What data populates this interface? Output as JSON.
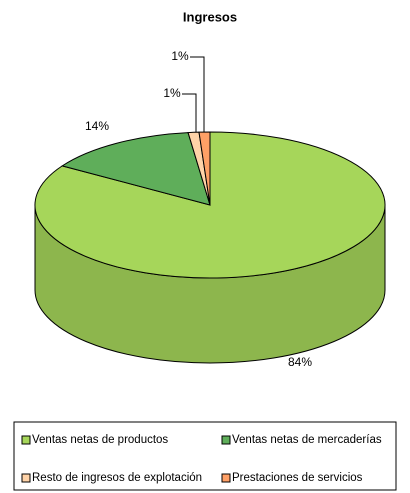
{
  "chart_data": {
    "type": "pie",
    "title": "Ingresos",
    "categories": [
      "Ventas netas de productos",
      "Ventas netas de mercaderías",
      "Resto de ingresos de explotación",
      "Prestaciones de servicios"
    ],
    "values": [
      84,
      14,
      1,
      1
    ],
    "value_labels": [
      "84%",
      "14%",
      "1%",
      "1%"
    ],
    "colors": [
      "#a6d65a",
      "#5fae5a",
      "#ffd3a8",
      "#ffa066"
    ]
  }
}
